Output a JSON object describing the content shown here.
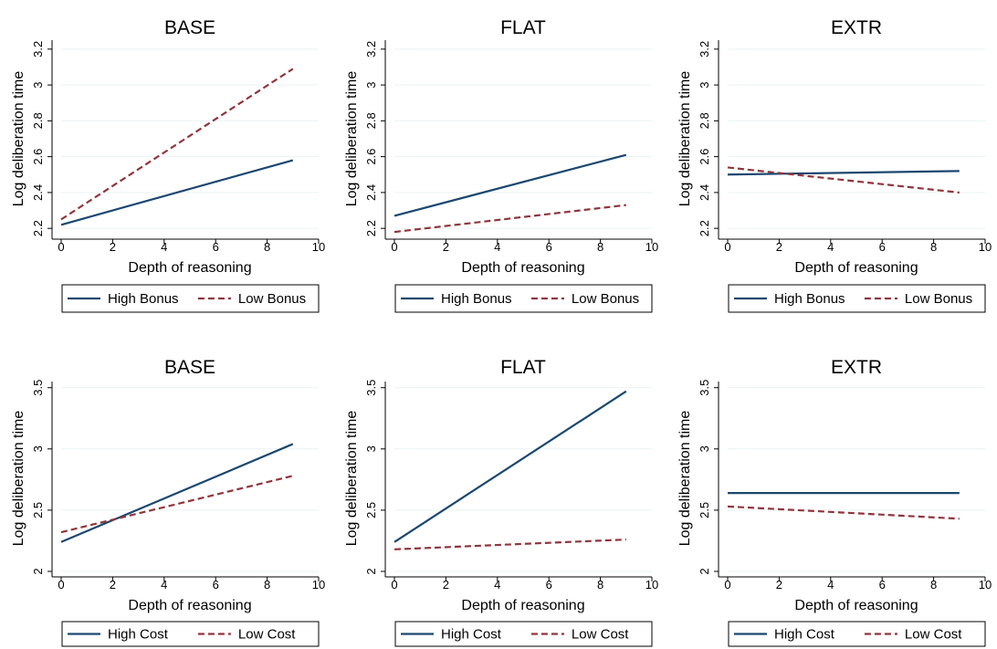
{
  "colors": {
    "high_series": "#1a476f",
    "low_series": "#90353b",
    "gridline": "#eaf2f3",
    "axis": "#000000",
    "background": "#ffffff"
  },
  "chart_data": [
    {
      "type": "line",
      "title": "BASE",
      "xlabel": "Depth of reasoning",
      "ylabel": "Log deliberation time",
      "xlim": [
        0,
        10
      ],
      "ylim": [
        2.15,
        3.25
      ],
      "xticks": [
        0,
        2,
        4,
        6,
        8,
        10
      ],
      "yticks": [
        2.2,
        2.4,
        2.6,
        2.8,
        3,
        3.2
      ],
      "grid": true,
      "legend_position": "bottom",
      "series": [
        {
          "name": "High Bonus",
          "style": "solid",
          "x": [
            0,
            9
          ],
          "y": [
            2.22,
            2.58
          ]
        },
        {
          "name": "Low Bonus",
          "style": "dashed",
          "x": [
            0,
            9
          ],
          "y": [
            2.25,
            3.09
          ]
        }
      ]
    },
    {
      "type": "line",
      "title": "FLAT",
      "xlabel": "Depth of reasoning",
      "ylabel": "Log deliberation time",
      "xlim": [
        0,
        10
      ],
      "ylim": [
        2.15,
        3.25
      ],
      "xticks": [
        0,
        2,
        4,
        6,
        8,
        10
      ],
      "yticks": [
        2.2,
        2.4,
        2.6,
        2.8,
        3,
        3.2
      ],
      "grid": true,
      "legend_position": "bottom",
      "series": [
        {
          "name": "High Bonus",
          "style": "solid",
          "x": [
            0,
            9
          ],
          "y": [
            2.27,
            2.61
          ]
        },
        {
          "name": "Low Bonus",
          "style": "dashed",
          "x": [
            0,
            9
          ],
          "y": [
            2.18,
            2.33
          ]
        }
      ]
    },
    {
      "type": "line",
      "title": "EXTR",
      "xlabel": "Depth of reasoning",
      "ylabel": "Log deliberation time",
      "xlim": [
        0,
        10
      ],
      "ylim": [
        2.15,
        3.25
      ],
      "xticks": [
        0,
        2,
        4,
        6,
        8,
        10
      ],
      "yticks": [
        2.2,
        2.4,
        2.6,
        2.8,
        3,
        3.2
      ],
      "grid": true,
      "legend_position": "bottom",
      "series": [
        {
          "name": "High Bonus",
          "style": "solid",
          "x": [
            0,
            9
          ],
          "y": [
            2.5,
            2.52
          ]
        },
        {
          "name": "Low Bonus",
          "style": "dashed",
          "x": [
            0,
            9
          ],
          "y": [
            2.54,
            2.4
          ]
        }
      ]
    },
    {
      "type": "line",
      "title": "BASE",
      "xlabel": "Depth of reasoning",
      "ylabel": "Log deliberation time",
      "xlim": [
        0,
        10
      ],
      "ylim": [
        1.97,
        3.55
      ],
      "xticks": [
        0,
        2,
        4,
        6,
        8,
        10
      ],
      "yticks": [
        2,
        2.5,
        3,
        3.5
      ],
      "grid": true,
      "legend_position": "bottom",
      "series": [
        {
          "name": "High Cost",
          "style": "solid",
          "x": [
            0,
            9
          ],
          "y": [
            2.24,
            3.04
          ]
        },
        {
          "name": "Low Cost",
          "style": "dashed",
          "x": [
            0,
            9
          ],
          "y": [
            2.32,
            2.78
          ]
        }
      ]
    },
    {
      "type": "line",
      "title": "FLAT",
      "xlabel": "Depth of reasoning",
      "ylabel": "Log deliberation time",
      "xlim": [
        0,
        10
      ],
      "ylim": [
        1.97,
        3.55
      ],
      "xticks": [
        0,
        2,
        4,
        6,
        8,
        10
      ],
      "yticks": [
        2,
        2.5,
        3,
        3.5
      ],
      "grid": true,
      "legend_position": "bottom",
      "series": [
        {
          "name": "High Cost",
          "style": "solid",
          "x": [
            0,
            9
          ],
          "y": [
            2.24,
            3.47
          ]
        },
        {
          "name": "Low Cost",
          "style": "dashed",
          "x": [
            0,
            9
          ],
          "y": [
            2.18,
            2.26
          ]
        }
      ]
    },
    {
      "type": "line",
      "title": "EXTR",
      "xlabel": "Depth of reasoning",
      "ylabel": "Log deliberation time",
      "xlim": [
        0,
        10
      ],
      "ylim": [
        1.97,
        3.55
      ],
      "xticks": [
        0,
        2,
        4,
        6,
        8,
        10
      ],
      "yticks": [
        2,
        2.5,
        3,
        3.5
      ],
      "grid": true,
      "legend_position": "bottom",
      "series": [
        {
          "name": "High Cost",
          "style": "solid",
          "x": [
            0,
            9
          ],
          "y": [
            2.64,
            2.64
          ]
        },
        {
          "name": "Low Cost",
          "style": "dashed",
          "x": [
            0,
            9
          ],
          "y": [
            2.53,
            2.43
          ]
        }
      ]
    }
  ]
}
